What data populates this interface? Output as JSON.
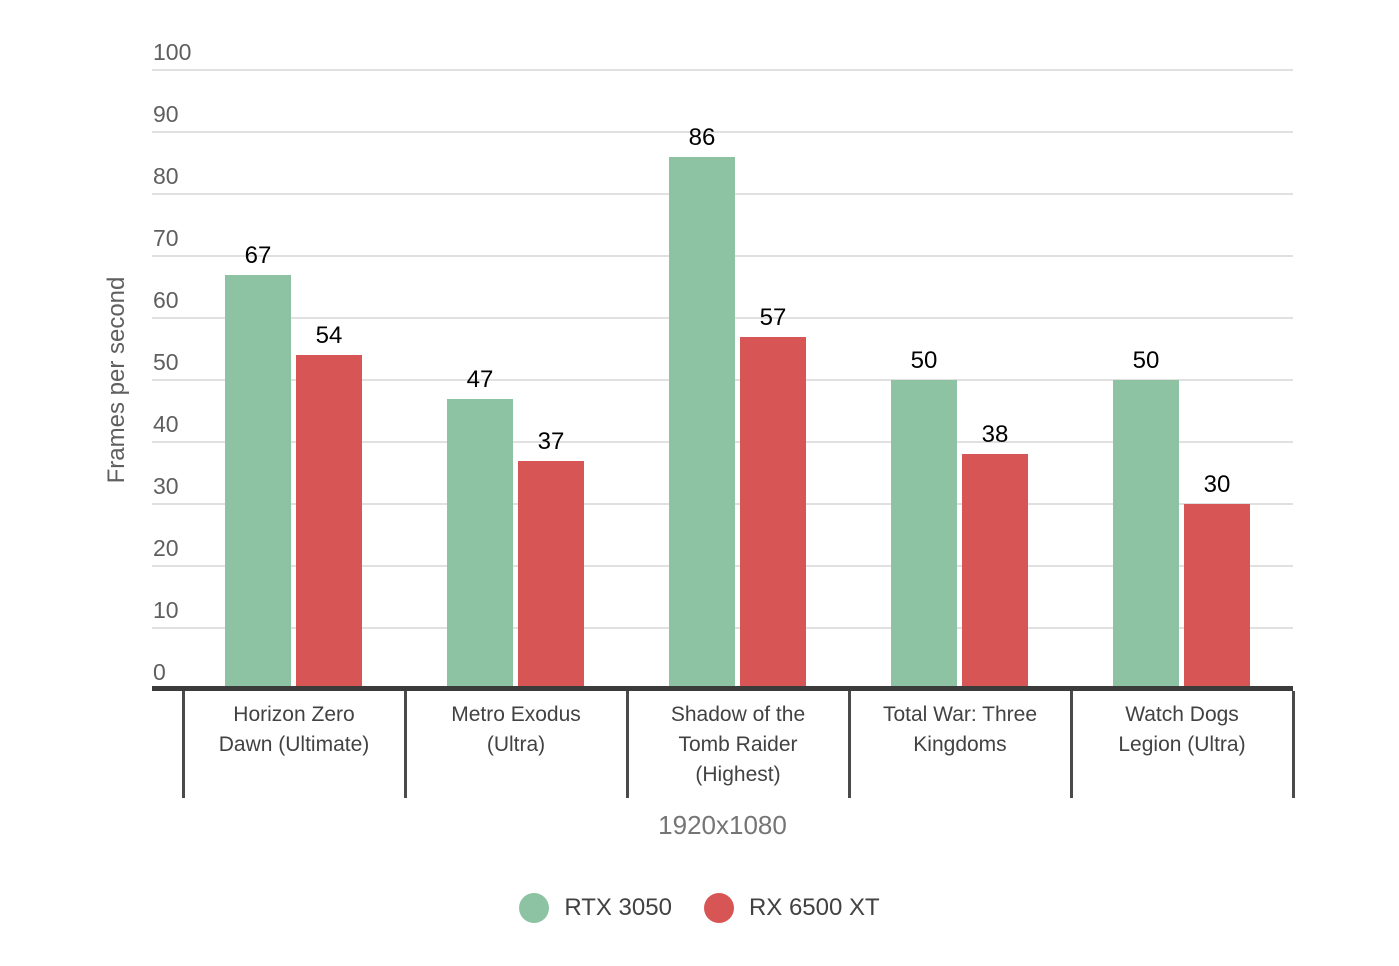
{
  "chart_data": {
    "type": "bar",
    "title": "",
    "categories": [
      "Horizon Zero\nDawn (Ultimate)",
      "Metro Exodus\n(Ultra)",
      "Shadow of the\nTomb Raider\n(Highest)",
      "Total War: Three\nKingdoms",
      "Watch Dogs\nLegion (Ultra)"
    ],
    "series": [
      {
        "name": "RTX 3050",
        "color": "#8dc3a3",
        "values": [
          67,
          47,
          86,
          50,
          50
        ]
      },
      {
        "name": "RX 6500 XT",
        "color": "#d85555",
        "values": [
          54,
          37,
          57,
          38,
          30
        ]
      }
    ],
    "xlabel": "1920x1080",
    "ylabel": "Frames per second",
    "ylim": [
      0,
      100
    ],
    "ytick_step": 10,
    "yticks": [
      0,
      10,
      20,
      30,
      40,
      50,
      60,
      70,
      80,
      90,
      100
    ],
    "grid": true,
    "legend_position": "bottom",
    "value_labels_shown": true
  },
  "colors": {
    "background": "#ffffff",
    "gridline": "#e0e0e0",
    "axis_line": "#3b3b3b",
    "divider": "#4a4a4a",
    "tick_text": "#5f5f5f",
    "category_text": "#424242",
    "value_text": "#000000",
    "x_title_text": "#757575",
    "y_title_text": "#5f5f5f",
    "legend_text": "#424242"
  }
}
